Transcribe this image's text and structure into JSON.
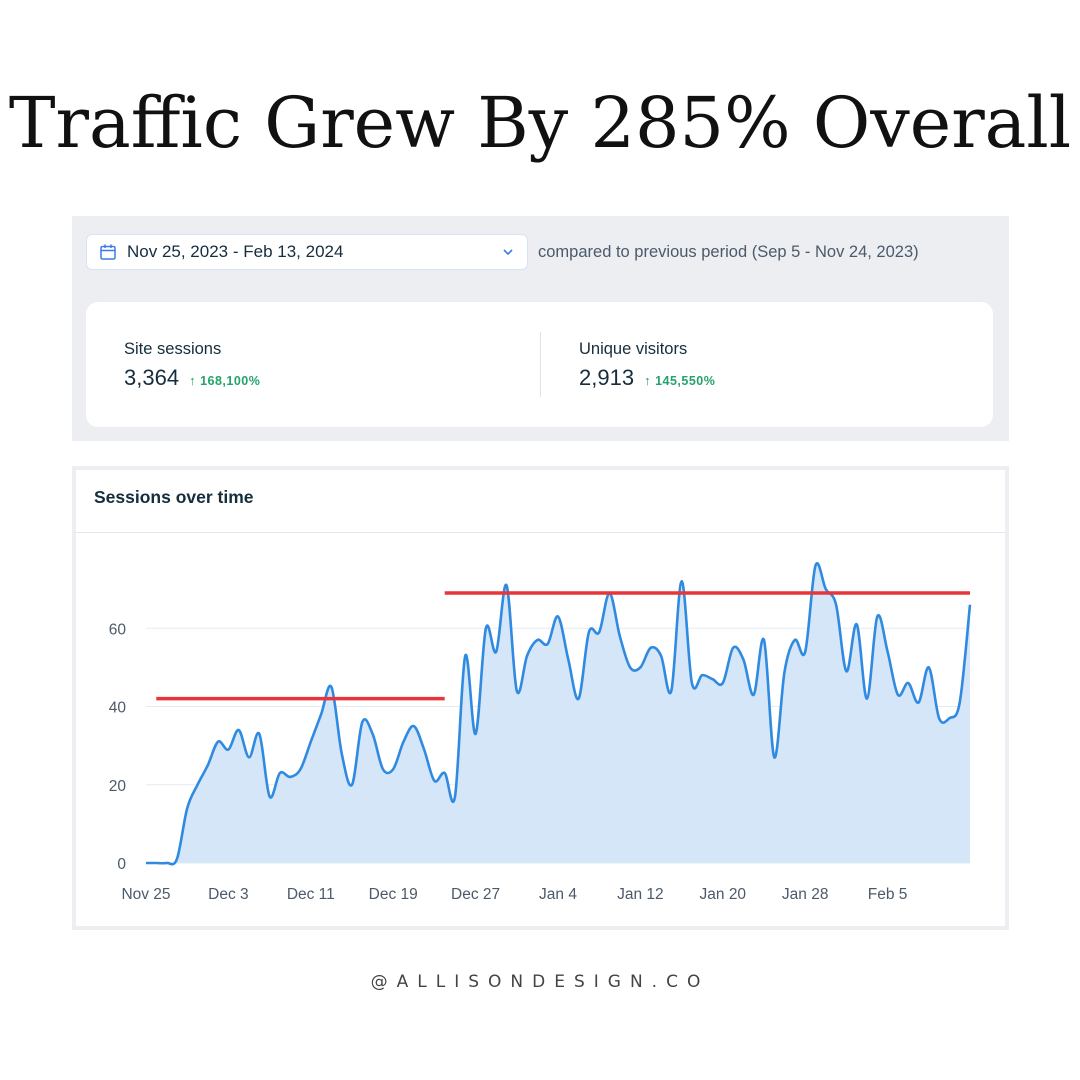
{
  "headline": "Traffic Grew By 285% Overall",
  "filters": {
    "date_range": "Nov 25, 2023 - Feb 13, 2024",
    "comparison": "compared to previous period (Sep 5 - Nov 24, 2023)"
  },
  "stats": [
    {
      "label": "Site sessions",
      "value": "3,364",
      "change": "168,100%"
    },
    {
      "label": "Unique visitors",
      "value": "2,913",
      "change": "145,550%"
    }
  ],
  "colors": {
    "line": "#2f8ae0",
    "area": "#d4e6f8",
    "highlight": "#e8353a",
    "positive": "#25a36a"
  },
  "icons": {
    "calendar": "calendar-icon",
    "dropdown": "chevron-down-icon",
    "up": "arrow-up-icon"
  },
  "chart_data": {
    "type": "area",
    "title": "Sessions over time",
    "x_tick_labels": [
      "Nov 25",
      "Dec 3",
      "Dec 11",
      "Dec 19",
      "Dec 27",
      "Jan 4",
      "Jan 12",
      "Jan 20",
      "Jan 28",
      "Feb 5"
    ],
    "y_ticks": [
      0,
      20,
      40,
      60
    ],
    "ylim": [
      0,
      80
    ],
    "grid": true,
    "series": [
      {
        "values": [
          0,
          0,
          0,
          1,
          14,
          20,
          25,
          31,
          29,
          34,
          27,
          33,
          17,
          23,
          22,
          24,
          31,
          38,
          45,
          28,
          20,
          36,
          33,
          24,
          24,
          31,
          35,
          29,
          21,
          23,
          17,
          53,
          33,
          60,
          54,
          71,
          44,
          53,
          57,
          56,
          63,
          52,
          42,
          59,
          59,
          69,
          58,
          50,
          50,
          55,
          53,
          44,
          72,
          46,
          48,
          47,
          46,
          55,
          52,
          43,
          57,
          27,
          49,
          57,
          54,
          76,
          70,
          66,
          49,
          61,
          42,
          63,
          54,
          43,
          46,
          41,
          50,
          37,
          37,
          41,
          66
        ]
      }
    ],
    "reference_lines": [
      {
        "from_index": 1,
        "to_index": 29,
        "y": 42
      },
      {
        "from_index": 29,
        "to_index": 80,
        "y": 69
      }
    ]
  },
  "footer": "@ALLISONDESIGN.CO"
}
